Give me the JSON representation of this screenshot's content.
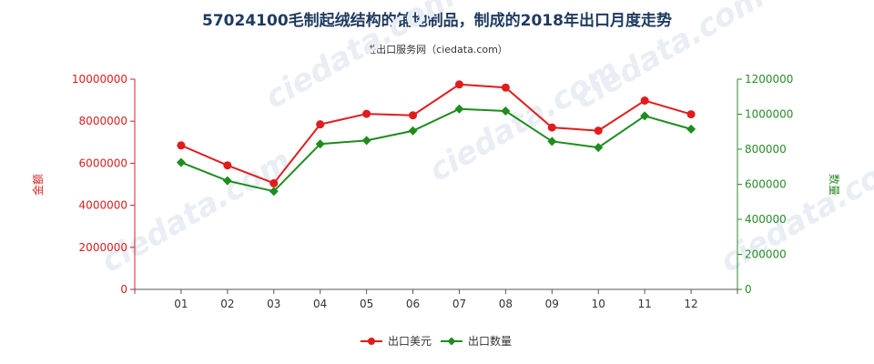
{
  "chart_data": {
    "type": "line",
    "title": "57024100毛制起绒结构的铺地制品，制成的2018年出口月度走势",
    "subtitle": "进出口服务网（ciedata.com）",
    "categories": [
      "01",
      "02",
      "03",
      "04",
      "05",
      "06",
      "07",
      "08",
      "09",
      "10",
      "11",
      "12"
    ],
    "y_left": {
      "label": "金额",
      "ylim": [
        0,
        10000000
      ],
      "ticks": [
        "0",
        "2000000",
        "4000000",
        "6000000",
        "8000000",
        "10000000"
      ],
      "color": "#d42020"
    },
    "y_right": {
      "label": "数量",
      "ylim": [
        0,
        1200000
      ],
      "ticks": [
        "0",
        "200000",
        "400000",
        "600000",
        "800000",
        "1000000",
        "1200000"
      ],
      "color": "#2a8a2a"
    },
    "series": [
      {
        "name": "出口美元",
        "axis": "left",
        "color": "#e01c1c",
        "values": [
          6850000,
          5900000,
          5050000,
          7850000,
          8350000,
          8280000,
          9750000,
          9600000,
          7700000,
          7550000,
          8980000,
          8330000
        ]
      },
      {
        "name": "出口数量",
        "axis": "right",
        "color": "#1e8c1e",
        "values": [
          725000,
          620000,
          560000,
          830000,
          850000,
          905000,
          1030000,
          1018000,
          845000,
          810000,
          990000,
          915000
        ]
      }
    ],
    "legend": "bottom",
    "grid": false
  }
}
